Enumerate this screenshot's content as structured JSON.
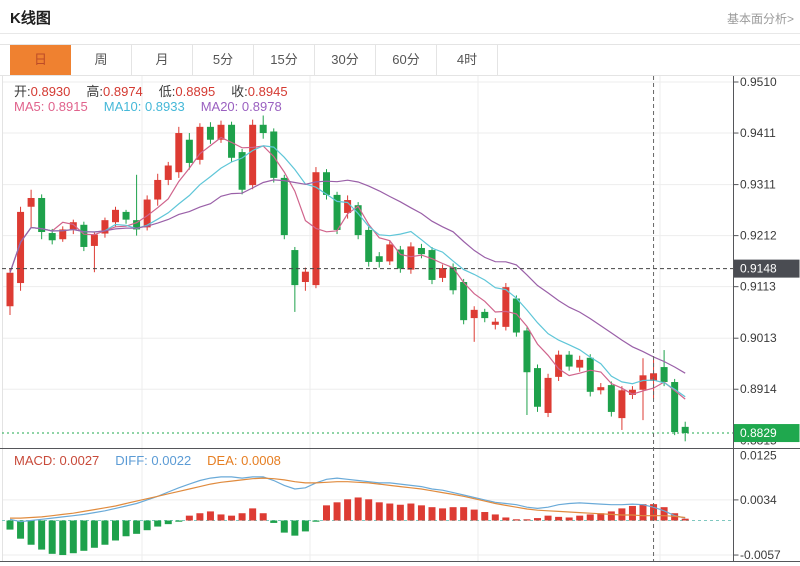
{
  "header": {
    "title": "K线图",
    "link": "基本面分析>"
  },
  "tabs": {
    "items": [
      "日",
      "周",
      "月",
      "5分",
      "15分",
      "30分",
      "60分",
      "4时"
    ],
    "selected": "日"
  },
  "legend": {
    "open_label": "开:",
    "open": "0.8930",
    "high_label": "高:",
    "high": "0.8974",
    "low_label": "低:",
    "low": "0.8895",
    "close_label": "收:",
    "close": "0.8945",
    "ma5_label": "MA5:",
    "ma5": "0.8915",
    "ma10_label": "MA10:",
    "ma10": "0.8933",
    "ma20_label": "MA20:",
    "ma20": "0.8978",
    "macd_label": "MACD:",
    "macd": "0.0027",
    "diff_label": "DIFF:",
    "diff": "0.0022",
    "dea_label": "DEA:",
    "dea": "0.0008"
  },
  "chart_data": {
    "type": "candlestick",
    "title": "K线图",
    "price_axis_labels": [
      "0.9510",
      "0.9411",
      "0.9311",
      "0.9212",
      "0.9113",
      "0.9013",
      "0.8914",
      "0.8815"
    ],
    "macd_axis_labels": [
      "0.0125",
      "0.0034",
      "-0.0057"
    ],
    "crosshair_price_label": "0.9148",
    "latest_price_label": "0.8829",
    "crosshair_candle_index": 61,
    "ma_periods": [
      5,
      10,
      20
    ],
    "candles": [
      [
        0.9075,
        0.9148,
        0.9058,
        0.914
      ],
      [
        0.912,
        0.9268,
        0.9105,
        0.9258
      ],
      [
        0.9268,
        0.9301,
        0.9227,
        0.9285
      ],
      [
        0.9285,
        0.9292,
        0.9205,
        0.9219
      ],
      [
        0.9217,
        0.9225,
        0.9195,
        0.9203
      ],
      [
        0.9205,
        0.923,
        0.92,
        0.9224
      ],
      [
        0.9224,
        0.9243,
        0.9215,
        0.9238
      ],
      [
        0.9233,
        0.9239,
        0.9182,
        0.919
      ],
      [
        0.9192,
        0.9218,
        0.9141,
        0.9214
      ],
      [
        0.9216,
        0.9247,
        0.9208,
        0.9242
      ],
      [
        0.9238,
        0.9268,
        0.923,
        0.9262
      ],
      [
        0.9258,
        0.9262,
        0.9235,
        0.9243
      ],
      [
        0.9242,
        0.933,
        0.9212,
        0.9224
      ],
      [
        0.9228,
        0.929,
        0.9222,
        0.9282
      ],
      [
        0.9282,
        0.9332,
        0.927,
        0.932
      ],
      [
        0.932,
        0.9355,
        0.931,
        0.9348
      ],
      [
        0.9335,
        0.9423,
        0.9324,
        0.9411
      ],
      [
        0.9398,
        0.9411,
        0.934,
        0.9353
      ],
      [
        0.9359,
        0.943,
        0.935,
        0.9423
      ],
      [
        0.9423,
        0.9432,
        0.939,
        0.9398
      ],
      [
        0.9398,
        0.9435,
        0.9392,
        0.9427
      ],
      [
        0.9427,
        0.9433,
        0.9355,
        0.9363
      ],
      [
        0.9374,
        0.938,
        0.9292,
        0.9301
      ],
      [
        0.931,
        0.9437,
        0.9302,
        0.9427
      ],
      [
        0.9427,
        0.9445,
        0.94,
        0.9411
      ],
      [
        0.9414,
        0.942,
        0.9315,
        0.9324
      ],
      [
        0.9324,
        0.933,
        0.9205,
        0.9213
      ],
      [
        0.9184,
        0.919,
        0.9064,
        0.9116
      ],
      [
        0.9122,
        0.915,
        0.9105,
        0.9142
      ],
      [
        0.9116,
        0.9345,
        0.911,
        0.9335
      ],
      [
        0.9335,
        0.9341,
        0.9282,
        0.9291
      ],
      [
        0.9291,
        0.9297,
        0.9215,
        0.9223
      ],
      [
        0.9256,
        0.929,
        0.9245,
        0.9281
      ],
      [
        0.9271,
        0.9277,
        0.9205,
        0.9213
      ],
      [
        0.9223,
        0.9229,
        0.9152,
        0.9161
      ],
      [
        0.9172,
        0.918,
        0.915,
        0.9161
      ],
      [
        0.9162,
        0.9203,
        0.9155,
        0.9195
      ],
      [
        0.9185,
        0.9192,
        0.914,
        0.9148
      ],
      [
        0.9146,
        0.9199,
        0.9138,
        0.9191
      ],
      [
        0.9188,
        0.9196,
        0.9168,
        0.9176
      ],
      [
        0.9184,
        0.919,
        0.9118,
        0.9126
      ],
      [
        0.913,
        0.9156,
        0.9122,
        0.9149
      ],
      [
        0.9151,
        0.9158,
        0.9098,
        0.9106
      ],
      [
        0.9122,
        0.9128,
        0.904,
        0.9048
      ],
      [
        0.9052,
        0.9075,
        0.9006,
        0.9068
      ],
      [
        0.9064,
        0.907,
        0.9044,
        0.9052
      ],
      [
        0.9039,
        0.9052,
        0.903,
        0.9045
      ],
      [
        0.9035,
        0.912,
        0.9028,
        0.9112
      ],
      [
        0.909,
        0.9096,
        0.9016,
        0.9024
      ],
      [
        0.9028,
        0.9034,
        0.8864,
        0.8947
      ],
      [
        0.8955,
        0.8962,
        0.887,
        0.888
      ],
      [
        0.8868,
        0.8944,
        0.886,
        0.8936
      ],
      [
        0.8938,
        0.8989,
        0.893,
        0.8981
      ],
      [
        0.8981,
        0.8988,
        0.895,
        0.8958
      ],
      [
        0.8956,
        0.8979,
        0.8948,
        0.8971
      ],
      [
        0.8975,
        0.8982,
        0.89,
        0.8909
      ],
      [
        0.8912,
        0.8926,
        0.8904,
        0.8918
      ],
      [
        0.8922,
        0.8929,
        0.8861,
        0.887
      ],
      [
        0.8858,
        0.892,
        0.8835,
        0.8912
      ],
      [
        0.8903,
        0.892,
        0.8895,
        0.8913
      ],
      [
        0.8913,
        0.8974,
        0.8854,
        0.8941
      ],
      [
        0.893,
        0.8974,
        0.8895,
        0.8945
      ],
      [
        0.8957,
        0.899,
        0.892,
        0.8928
      ],
      [
        0.8928,
        0.8934,
        0.8825,
        0.8831
      ],
      [
        0.8841,
        0.8851,
        0.8813,
        0.8829
      ]
    ],
    "macd": {
      "histogram": [
        -0.0015,
        -0.003,
        -0.004,
        -0.0048,
        -0.0055,
        -0.0057,
        -0.0054,
        -0.005,
        -0.0045,
        -0.004,
        -0.0033,
        -0.0026,
        -0.0022,
        -0.0016,
        -0.001,
        -0.0006,
        -0.0002,
        0.0008,
        0.0012,
        0.0015,
        0.001,
        0.0008,
        0.0012,
        0.002,
        0.0012,
        -0.0004,
        -0.002,
        -0.0025,
        -0.0018,
        -0.0002,
        0.0025,
        0.003,
        0.0035,
        0.0038,
        0.0035,
        0.003,
        0.0028,
        0.0026,
        0.0028,
        0.0025,
        0.0022,
        0.002,
        0.0022,
        0.0022,
        0.0018,
        0.0014,
        0.001,
        0.0005,
        0.0002,
        0.0002,
        0.0004,
        0.0008,
        0.0006,
        0.0005,
        0.0008,
        0.001,
        0.0012,
        0.0015,
        0.002,
        0.0024,
        0.0027,
        0.0027,
        0.0022,
        0.0012,
        0.0003
      ],
      "diff": [
        0.0002,
        -0.0002,
        0.0,
        0.0002,
        0.0004,
        0.0006,
        0.0008,
        0.001,
        0.0013,
        0.0016,
        0.002,
        0.0024,
        0.0028,
        0.0034,
        0.004,
        0.0047,
        0.0054,
        0.006,
        0.0066,
        0.007,
        0.0072,
        0.0072,
        0.007,
        0.0072,
        0.0072,
        0.0066,
        0.0058,
        0.0052,
        0.0054,
        0.0062,
        0.0068,
        0.007,
        0.0068,
        0.0066,
        0.0064,
        0.0062,
        0.0062,
        0.006,
        0.0058,
        0.0056,
        0.0052,
        0.005,
        0.0046,
        0.0042,
        0.0038,
        0.0034,
        0.003,
        0.0028,
        0.0026,
        0.0022,
        0.002,
        0.0022,
        0.0026,
        0.0028,
        0.0029,
        0.0028,
        0.0027,
        0.0026,
        0.0026,
        0.0027,
        0.0026,
        0.0022,
        0.0016,
        0.0008,
        0.0004
      ],
      "dea": [
        0.0004,
        0.0004,
        0.0005,
        0.0006,
        0.0008,
        0.001,
        0.0012,
        0.0015,
        0.0018,
        0.0021,
        0.0024,
        0.0028,
        0.0032,
        0.0036,
        0.004,
        0.0044,
        0.0048,
        0.0052,
        0.0056,
        0.006,
        0.0063,
        0.0065,
        0.0067,
        0.0069,
        0.007,
        0.0069,
        0.0067,
        0.0064,
        0.0062,
        0.0062,
        0.0063,
        0.0064,
        0.0064,
        0.0063,
        0.0062,
        0.006,
        0.0058,
        0.0056,
        0.0054,
        0.0052,
        0.0049,
        0.0046,
        0.0043,
        0.004,
        0.0036,
        0.0032,
        0.0028,
        0.0025,
        0.0022,
        0.0019,
        0.0017,
        0.0016,
        0.0015,
        0.0014,
        0.0013,
        0.0012,
        0.0011,
        0.001,
        0.0009,
        0.0009,
        0.0008,
        0.0008,
        0.0008,
        0.0007,
        0.0005
      ]
    },
    "colors": {
      "up": "#dd3b33",
      "down": "#1ea14b",
      "ma5": "#d0648c",
      "ma10": "#5fc6d8",
      "ma20": "#9a60a8",
      "diff_line": "#6aaad8",
      "dea_line": "#e08b3e",
      "crosshair_tag_bg": "#4a4c52",
      "latest_tag_bg": "#1fa84e",
      "accent_tab": "#ef8130"
    }
  }
}
